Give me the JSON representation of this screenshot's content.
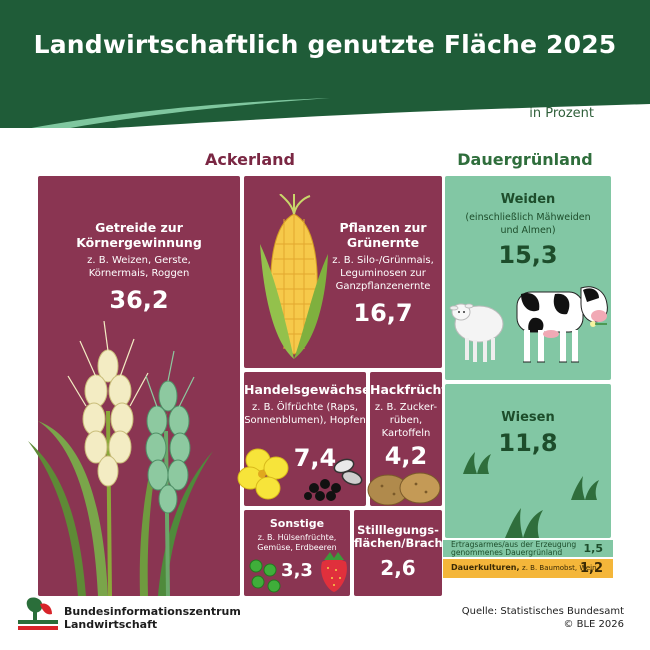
{
  "title": "Landwirtschaftlich genutzte Fläche 2025",
  "unit": "in Prozent",
  "sections": {
    "ackerland": "Ackerland",
    "dauergruenland": "Dauergrünland"
  },
  "tiles": {
    "getreide": {
      "title_line1": "Getreide zur",
      "title_line2": "Körnergewinnung",
      "sub_line1": "z. B. Weizen, Gerste,",
      "sub_line2": "Körnermais, Roggen",
      "value": "36,2"
    },
    "gruenernte": {
      "title_line1": "Pflanzen zur",
      "title_line2": "Grünernte",
      "sub_line1": "z. B. Silo-/Grünmais,",
      "sub_line2": "Leguminosen zur",
      "sub_line3": "Ganzpflanzenernte",
      "value": "16,7"
    },
    "handel": {
      "title": "Handelsgewächse",
      "sub_line1": "z. B. Ölfrüchte (Raps,",
      "sub_line2": "Sonnenblumen), Hopfen",
      "value": "7,4"
    },
    "hack": {
      "title": "Hackfrüchte",
      "sub_line1": "z. B. Zucker-",
      "sub_line2": "rüben,",
      "sub_line3": "Kartoffeln",
      "value": "4,2"
    },
    "sonstige": {
      "title": "Sonstige",
      "sub_line1": "z. B. Hülsenfrüchte,",
      "sub_line2": "Gemüse, Erdbeeren",
      "value": "3,3"
    },
    "stilllegung": {
      "title_line1": "Stilllegungs-",
      "title_line2": "flächen/Brache",
      "value": "2,6"
    },
    "weiden": {
      "title": "Weiden",
      "sub_line1": "(einschließlich Mähweiden",
      "sub_line2": "und Almen)",
      "value": "15,3"
    },
    "wiesen": {
      "title": "Wiesen",
      "value": "11,8"
    },
    "ertragsarm": {
      "label_line1": "Ertragsarmes/aus der Erzeugung",
      "label_line2": "genommenes Dauergrünland",
      "value": "1,5"
    },
    "dauerkulturen": {
      "label": "Dauerkulturen,",
      "sub": "z. B. Baumobst, Wein",
      "value": "1,2"
    }
  },
  "footer": {
    "org_line1": "Bundesinformationszentrum",
    "org_line2": "Landwirtschaft",
    "source": "Quelle: Statistisches Bundesamt",
    "copyright": "© BLE 2026"
  },
  "colors": {
    "header": "#1f5c38",
    "acker": "#8a3552",
    "gruen": "#82c7a4",
    "dauerkultur": "#f4b63a",
    "acker_title": "#7a2743",
    "gruen_title": "#2f6e3c"
  }
}
